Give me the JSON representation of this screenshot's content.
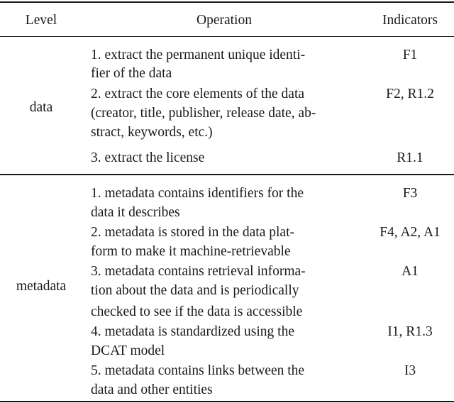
{
  "header": {
    "level": "Level",
    "operation": "Operation",
    "indicators": "Indicators"
  },
  "groups": [
    {
      "level": "data",
      "rows": [
        {
          "lines": [
            "1. extract the permanent unique identi-",
            "fier of the data"
          ],
          "indicators": "F1"
        },
        {
          "lines": [
            "2. extract the core elements of the data",
            "(creator, title, publisher, release date, ab-",
            "stract, keywords, etc.)"
          ],
          "indicators": "F2, R1.2"
        },
        {
          "lines": [
            "3. extract the license"
          ],
          "indicators": "R1.1"
        }
      ]
    },
    {
      "level": "metadata",
      "rows": [
        {
          "lines": [
            "1. metadata contains identifiers for the",
            "data it describes"
          ],
          "indicators": "F3"
        },
        {
          "lines": [
            "2. metadata is stored in the data plat-",
            "form to make it machine-retrievable"
          ],
          "indicators": "F4, A2, A1"
        },
        {
          "lines": [
            "3. metadata contains retrieval informa-",
            "tion about the data and is periodically",
            "checked to see if the data is accessible"
          ],
          "indicators": "A1"
        },
        {
          "lines": [
            "4. metadata is standardized using the",
            "DCAT model"
          ],
          "indicators": "I1, R1.3"
        },
        {
          "lines": [
            "5. metadata contains links between the",
            "data and other entities"
          ],
          "indicators": "I3"
        }
      ]
    }
  ]
}
